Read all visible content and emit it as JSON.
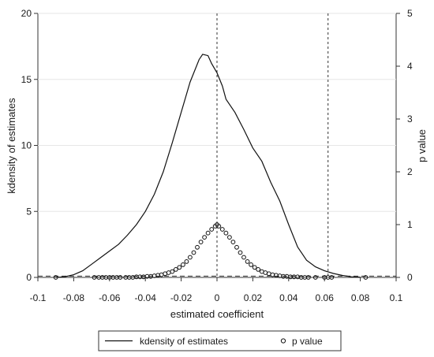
{
  "chart_data": {
    "type": "line",
    "xlabel": "estimated coefficient",
    "ylabel_left": "kdensity of estimates",
    "ylabel_right": "p value",
    "xlim": [
      -0.1,
      0.1
    ],
    "ylim_left": [
      0,
      20
    ],
    "ylim_right": [
      0,
      5
    ],
    "x_ticks": [
      "-0.1",
      "-0.08",
      "-0.06",
      "-0.04",
      "-0.02",
      "0",
      "0.02",
      "0.04",
      "0.06",
      "0.08",
      "0.1"
    ],
    "y_left_ticks": [
      "0",
      "5",
      "10",
      "15",
      "20"
    ],
    "y_right_ticks": [
      "0",
      "1",
      "2",
      "3",
      "4",
      "5"
    ],
    "grid": "horizontal",
    "reference_lines": {
      "vertical_x": [
        0,
        0.062
      ],
      "horizontal_y_left": [
        0.1
      ]
    },
    "legend_position": "bottom",
    "series": [
      {
        "name": "kdensity of estimates",
        "kind": "line",
        "axis": "left",
        "points": [
          [
            -0.09,
            0.0
          ],
          [
            -0.085,
            0.05
          ],
          [
            -0.08,
            0.2
          ],
          [
            -0.075,
            0.5
          ],
          [
            -0.07,
            1.0
          ],
          [
            -0.065,
            1.5
          ],
          [
            -0.06,
            2.0
          ],
          [
            -0.055,
            2.5
          ],
          [
            -0.05,
            3.2
          ],
          [
            -0.045,
            4.0
          ],
          [
            -0.04,
            5.0
          ],
          [
            -0.035,
            6.3
          ],
          [
            -0.03,
            8.0
          ],
          [
            -0.025,
            10.2
          ],
          [
            -0.02,
            12.5
          ],
          [
            -0.015,
            14.8
          ],
          [
            -0.01,
            16.5
          ],
          [
            -0.008,
            16.9
          ],
          [
            -0.005,
            16.8
          ],
          [
            -0.003,
            16.2
          ],
          [
            0.0,
            15.5
          ],
          [
            0.003,
            14.5
          ],
          [
            0.005,
            13.5
          ],
          [
            0.01,
            12.5
          ],
          [
            0.015,
            11.2
          ],
          [
            0.02,
            9.8
          ],
          [
            0.025,
            8.8
          ],
          [
            0.03,
            7.2
          ],
          [
            0.035,
            5.8
          ],
          [
            0.04,
            4.0
          ],
          [
            0.045,
            2.3
          ],
          [
            0.05,
            1.3
          ],
          [
            0.055,
            0.8
          ],
          [
            0.06,
            0.5
          ],
          [
            0.065,
            0.3
          ],
          [
            0.07,
            0.15
          ],
          [
            0.075,
            0.05
          ],
          [
            0.08,
            0.02
          ]
        ]
      },
      {
        "name": "p value",
        "kind": "scatter",
        "axis": "right",
        "points": [
          [
            -0.09,
            0.0
          ],
          [
            -0.0685,
            0.0
          ],
          [
            -0.066,
            0.0
          ],
          [
            -0.064,
            0.0
          ],
          [
            -0.062,
            0.0
          ],
          [
            -0.06,
            0.0
          ],
          [
            -0.058,
            0.0
          ],
          [
            -0.056,
            0.0
          ],
          [
            -0.054,
            0.0
          ],
          [
            -0.051,
            0.0
          ],
          [
            -0.049,
            0.0
          ],
          [
            -0.047,
            0.0
          ],
          [
            -0.045,
            0.01
          ],
          [
            -0.043,
            0.01
          ],
          [
            -0.041,
            0.01
          ],
          [
            -0.039,
            0.02
          ],
          [
            -0.037,
            0.02
          ],
          [
            -0.035,
            0.03
          ],
          [
            -0.033,
            0.04
          ],
          [
            -0.031,
            0.05
          ],
          [
            -0.029,
            0.07
          ],
          [
            -0.027,
            0.09
          ],
          [
            -0.025,
            0.11
          ],
          [
            -0.023,
            0.15
          ],
          [
            -0.021,
            0.19
          ],
          [
            -0.019,
            0.24
          ],
          [
            -0.017,
            0.3
          ],
          [
            -0.015,
            0.38
          ],
          [
            -0.013,
            0.47
          ],
          [
            -0.011,
            0.57
          ],
          [
            -0.009,
            0.67
          ],
          [
            -0.007,
            0.76
          ],
          [
            -0.005,
            0.84
          ],
          [
            -0.003,
            0.91
          ],
          [
            -0.001,
            0.97
          ],
          [
            0.0,
            1.0
          ],
          [
            0.001,
            0.97
          ],
          [
            0.003,
            0.91
          ],
          [
            0.005,
            0.84
          ],
          [
            0.007,
            0.76
          ],
          [
            0.009,
            0.67
          ],
          [
            0.011,
            0.57
          ],
          [
            0.013,
            0.47
          ],
          [
            0.015,
            0.38
          ],
          [
            0.017,
            0.3
          ],
          [
            0.019,
            0.24
          ],
          [
            0.021,
            0.19
          ],
          [
            0.023,
            0.15
          ],
          [
            0.025,
            0.11
          ],
          [
            0.027,
            0.09
          ],
          [
            0.029,
            0.07
          ],
          [
            0.031,
            0.05
          ],
          [
            0.033,
            0.04
          ],
          [
            0.035,
            0.03
          ],
          [
            0.037,
            0.02
          ],
          [
            0.039,
            0.02
          ],
          [
            0.041,
            0.01
          ],
          [
            0.043,
            0.01
          ],
          [
            0.045,
            0.01
          ],
          [
            0.047,
            0.0
          ],
          [
            0.049,
            0.0
          ],
          [
            0.051,
            0.0
          ],
          [
            0.055,
            0.0
          ],
          [
            0.06,
            0.0
          ],
          [
            0.062,
            0.0
          ],
          [
            0.064,
            0.0
          ],
          [
            0.083,
            0.0
          ]
        ]
      }
    ],
    "legend": [
      "kdensity of estimates",
      "p value"
    ]
  }
}
